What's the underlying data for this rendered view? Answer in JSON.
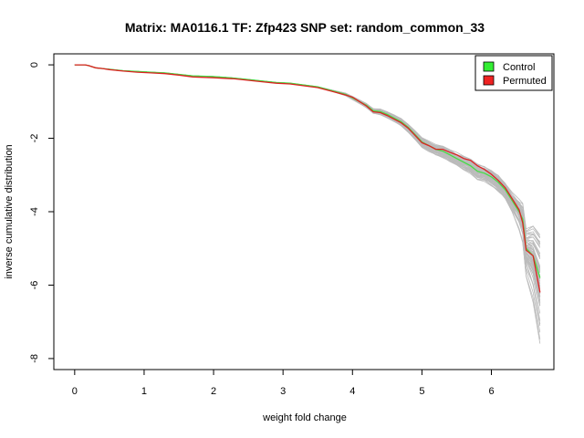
{
  "chart_data": {
    "type": "line",
    "title": "Matrix: MA0116.1 TF: Zfp423 SNP set: random_common_33",
    "xlabel": "weight fold change",
    "ylabel": "inverse cumulative distribution",
    "xlim": [
      -0.3,
      6.9
    ],
    "ylim": [
      -8.3,
      0.3
    ],
    "x_ticks": [
      0,
      1,
      2,
      3,
      4,
      5,
      6
    ],
    "y_ticks": [
      0,
      -2,
      -4,
      -6,
      -8
    ],
    "grid": false,
    "legend_position": "top-right",
    "legend": [
      {
        "label": "Control",
        "color": "#33ee33"
      },
      {
        "label": "Permuted",
        "color": "#ee2222"
      }
    ],
    "background_color": "#bbbbbb",
    "control_color": "#44dd44",
    "permuted_color": "#dd2222",
    "series": [
      {
        "name": "Control",
        "x": [
          0,
          0.15,
          0.2,
          0.3,
          0.4,
          0.5,
          0.7,
          0.9,
          1.1,
          1.3,
          1.5,
          1.7,
          2.0,
          2.3,
          2.5,
          2.7,
          2.9,
          3.1,
          3.3,
          3.5,
          3.7,
          3.9,
          4.0,
          4.1,
          4.2,
          4.3,
          4.4,
          4.5,
          4.6,
          4.7,
          4.8,
          4.9,
          5.0,
          5.1,
          5.2,
          5.3,
          5.4,
          5.5,
          5.6,
          5.7,
          5.8,
          5.9,
          6.0,
          6.1,
          6.2,
          6.3,
          6.4,
          6.45,
          6.5,
          6.6,
          6.7
        ],
        "y": [
          0,
          0,
          -0.02,
          -0.08,
          -0.1,
          -0.12,
          -0.16,
          -0.18,
          -0.2,
          -0.22,
          -0.26,
          -0.3,
          -0.32,
          -0.36,
          -0.4,
          -0.44,
          -0.48,
          -0.5,
          -0.55,
          -0.6,
          -0.7,
          -0.8,
          -0.9,
          -1.0,
          -1.1,
          -1.25,
          -1.27,
          -1.35,
          -1.45,
          -1.55,
          -1.7,
          -1.9,
          -2.1,
          -2.2,
          -2.3,
          -2.35,
          -2.45,
          -2.55,
          -2.65,
          -2.75,
          -2.9,
          -2.95,
          -3.05,
          -3.2,
          -3.4,
          -3.7,
          -4.0,
          -4.2,
          -5.0,
          -5.2,
          -5.8
        ]
      },
      {
        "name": "Permuted",
        "x": [
          0,
          0.15,
          0.2,
          0.3,
          0.4,
          0.5,
          0.7,
          0.9,
          1.1,
          1.3,
          1.5,
          1.7,
          2.0,
          2.3,
          2.5,
          2.7,
          2.9,
          3.1,
          3.3,
          3.5,
          3.7,
          3.9,
          4.0,
          4.1,
          4.2,
          4.3,
          4.4,
          4.5,
          4.6,
          4.7,
          4.8,
          4.9,
          5.0,
          5.1,
          5.2,
          5.3,
          5.4,
          5.5,
          5.6,
          5.7,
          5.8,
          5.9,
          6.0,
          6.1,
          6.2,
          6.3,
          6.4,
          6.45,
          6.5,
          6.6,
          6.7
        ],
        "y": [
          0,
          0,
          -0.02,
          -0.08,
          -0.1,
          -0.13,
          -0.17,
          -0.2,
          -0.22,
          -0.24,
          -0.28,
          -0.33,
          -0.35,
          -0.38,
          -0.42,
          -0.46,
          -0.5,
          -0.52,
          -0.57,
          -0.62,
          -0.72,
          -0.82,
          -0.88,
          -1.0,
          -1.12,
          -1.28,
          -1.3,
          -1.38,
          -1.48,
          -1.58,
          -1.72,
          -1.92,
          -2.12,
          -2.2,
          -2.3,
          -2.3,
          -2.38,
          -2.45,
          -2.55,
          -2.6,
          -2.75,
          -2.85,
          -2.98,
          -3.15,
          -3.35,
          -3.65,
          -3.95,
          -4.3,
          -5.05,
          -5.2,
          -6.2
        ]
      }
    ]
  }
}
